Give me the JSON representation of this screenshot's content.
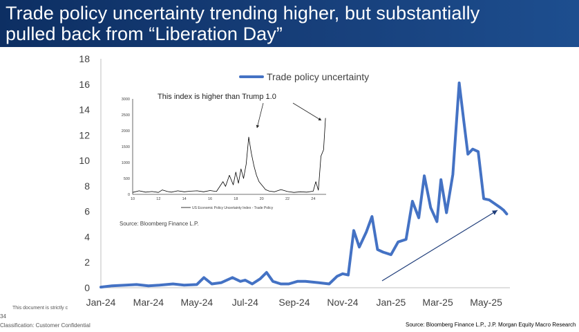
{
  "header": {
    "title_line1": "Trade policy uncertainty trending higher, but substantially",
    "title_line2": "pulled back from “Liberation Day”"
  },
  "colors": {
    "header_bg": "#173f7a",
    "main_series": "#4472c4",
    "arrow": "#1f3d7a",
    "inset_series": "#000000"
  },
  "chart_data": [
    {
      "type": "line",
      "title": "",
      "xlabel": "",
      "ylabel": "",
      "ylim": [
        0,
        18
      ],
      "yticks": [
        "0",
        "2",
        "4",
        "6",
        "8",
        "10",
        "12",
        "14",
        "16",
        "18"
      ],
      "xticks": [
        "Jan-24",
        "Mar-24",
        "May-24",
        "Jul-24",
        "Sep-24",
        "Nov-24",
        "Jan-25",
        "Mar-25",
        "May-25"
      ],
      "x_range": [
        "2024-01-01",
        "2025-05-31"
      ],
      "grid": false,
      "legend_position": "top",
      "series": [
        {
          "name": "Trade policy uncertainty",
          "color": "#4472c4",
          "x": [
            "2024-01-01",
            "2024-01-15",
            "2024-02-01",
            "2024-02-15",
            "2024-03-01",
            "2024-03-15",
            "2024-04-01",
            "2024-04-15",
            "2024-05-01",
            "2024-05-10",
            "2024-05-20",
            "2024-06-01",
            "2024-06-15",
            "2024-06-25",
            "2024-07-01",
            "2024-07-10",
            "2024-07-20",
            "2024-07-28",
            "2024-08-05",
            "2024-08-15",
            "2024-08-25",
            "2024-09-05",
            "2024-09-15",
            "2024-10-01",
            "2024-10-15",
            "2024-10-25",
            "2024-11-01",
            "2024-11-08",
            "2024-11-15",
            "2024-11-22",
            "2024-12-01",
            "2024-12-08",
            "2024-12-15",
            "2024-12-22",
            "2025-01-01",
            "2025-01-10",
            "2025-01-20",
            "2025-01-28",
            "2025-02-05",
            "2025-02-12",
            "2025-02-20",
            "2025-02-28",
            "2025-03-05",
            "2025-03-12",
            "2025-03-20",
            "2025-03-28",
            "2025-04-03",
            "2025-04-08",
            "2025-04-14",
            "2025-04-21",
            "2025-04-28",
            "2025-05-05",
            "2025-05-12",
            "2025-05-19",
            "2025-05-23",
            "2025-05-27"
          ],
          "values": [
            0.05,
            0.15,
            0.2,
            0.25,
            0.15,
            0.2,
            0.3,
            0.2,
            0.25,
            0.8,
            0.3,
            0.4,
            0.8,
            0.5,
            0.6,
            0.3,
            0.7,
            1.2,
            0.5,
            0.3,
            0.3,
            0.5,
            0.5,
            0.4,
            0.3,
            0.9,
            1.1,
            1.0,
            4.5,
            3.2,
            4.4,
            5.6,
            3.0,
            2.8,
            2.6,
            3.6,
            3.8,
            6.8,
            5.5,
            8.8,
            6.3,
            5.2,
            8.5,
            5.9,
            8.9,
            16.1,
            13.0,
            10.5,
            10.9,
            10.7,
            7.0,
            6.9,
            6.6,
            6.3,
            6.1,
            5.8
          ]
        }
      ],
      "annotations": [
        "Source: Bloomberg Finance L.P."
      ]
    },
    {
      "type": "line",
      "title": "This index is higher than Trump 1.0",
      "xlabel": "",
      "ylabel": "",
      "ylim": [
        0,
        3000
      ],
      "yticks": [
        "0",
        "500",
        "1000",
        "1500",
        "2000",
        "2500",
        "3000"
      ],
      "xticks": [
        "10",
        "12",
        "14",
        "16",
        "18",
        "20",
        "22",
        "24"
      ],
      "x_range": [
        10,
        25
      ],
      "grid": false,
      "series": [
        {
          "name": "US Economic Policy Uncertainty Index - Trade Policy",
          "color": "#000000",
          "x": [
            10,
            10.5,
            11,
            11.5,
            12,
            12.3,
            12.7,
            13,
            13.5,
            14,
            14.5,
            15,
            15.5,
            16,
            16.5,
            17,
            17.2,
            17.5,
            17.8,
            18,
            18.2,
            18.4,
            18.6,
            18.8,
            19,
            19.2,
            19.4,
            19.6,
            19.8,
            20,
            20.3,
            20.6,
            21,
            21.5,
            22,
            22.5,
            23,
            23.5,
            24,
            24.2,
            24.4,
            24.6,
            24.8,
            24.95
          ],
          "values": [
            60,
            110,
            70,
            90,
            60,
            140,
            90,
            70,
            110,
            80,
            100,
            110,
            80,
            120,
            90,
            400,
            250,
            600,
            300,
            700,
            350,
            800,
            500,
            950,
            1800,
            1300,
            900,
            600,
            400,
            300,
            150,
            100,
            80,
            150,
            90,
            60,
            80,
            70,
            100,
            400,
            130,
            1200,
            1400,
            2400
          ]
        }
      ]
    }
  ],
  "footer": {
    "classification": "Classification: Customer Confidential",
    "page_number": "34",
    "disclaimer": "This document is strictly c",
    "source": "Source: Bloomberg Finance L.P., J.P. Morgan Equity Macro Research"
  }
}
